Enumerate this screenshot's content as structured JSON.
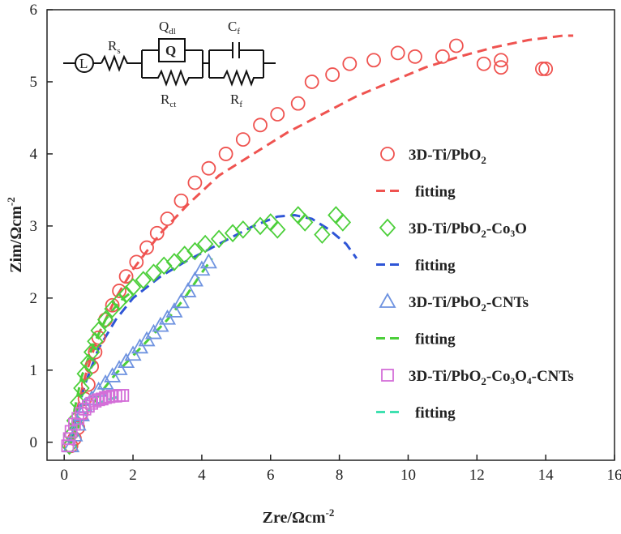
{
  "chart_data": {
    "type": "scatter",
    "xlabel": "Zre/Ωcm",
    "xlabel_sup": "-2",
    "ylabel": "Zim/Ωcm",
    "ylabel_sup": "-2",
    "xlim": [
      -0.5,
      16
    ],
    "ylim": [
      -0.25,
      6
    ],
    "xticks": [
      0,
      2,
      4,
      6,
      8,
      10,
      12,
      14,
      16
    ],
    "yticks": [
      0,
      1,
      2,
      3,
      4,
      5,
      6
    ],
    "grid": false,
    "legend_position": "right",
    "series": [
      {
        "id": "s1",
        "name_main": "3D-Ti/PbO",
        "name_sub": "2",
        "name_tail": "",
        "marker": "circle",
        "color": "#ef5350",
        "points": [
          [
            0.2,
            -0.05
          ],
          [
            0.3,
            0.05
          ],
          [
            0.4,
            0.2
          ],
          [
            0.5,
            0.4
          ],
          [
            0.6,
            0.6
          ],
          [
            0.7,
            0.8
          ],
          [
            0.8,
            1.05
          ],
          [
            0.9,
            1.25
          ],
          [
            1.0,
            1.45
          ],
          [
            1.2,
            1.7
          ],
          [
            1.4,
            1.9
          ],
          [
            1.6,
            2.1
          ],
          [
            1.8,
            2.3
          ],
          [
            2.1,
            2.5
          ],
          [
            2.4,
            2.7
          ],
          [
            2.7,
            2.9
          ],
          [
            3.0,
            3.1
          ],
          [
            3.4,
            3.35
          ],
          [
            3.8,
            3.6
          ],
          [
            4.2,
            3.8
          ],
          [
            4.7,
            4.0
          ],
          [
            5.2,
            4.2
          ],
          [
            5.7,
            4.4
          ],
          [
            6.2,
            4.55
          ],
          [
            6.8,
            4.7
          ],
          [
            7.2,
            5.0
          ],
          [
            7.8,
            5.1
          ],
          [
            8.3,
            5.25
          ],
          [
            9.0,
            5.3
          ],
          [
            9.7,
            5.4
          ],
          [
            10.2,
            5.35
          ],
          [
            11.0,
            5.35
          ],
          [
            11.4,
            5.5
          ],
          [
            12.2,
            5.25
          ],
          [
            12.7,
            5.2
          ],
          [
            12.7,
            5.3
          ],
          [
            13.9,
            5.18
          ],
          [
            14.0,
            5.18
          ]
        ]
      },
      {
        "id": "f1",
        "name_main": "fitting",
        "name_sub": "",
        "name_tail": "",
        "marker": "dash",
        "color": "#ef5350",
        "points": [
          [
            0.2,
            0.0
          ],
          [
            0.35,
            0.4
          ],
          [
            0.6,
            0.9
          ],
          [
            1.0,
            1.5
          ],
          [
            1.5,
            2.0
          ],
          [
            2.0,
            2.4
          ],
          [
            2.8,
            2.9
          ],
          [
            3.6,
            3.3
          ],
          [
            4.5,
            3.7
          ],
          [
            5.5,
            4.0
          ],
          [
            6.5,
            4.3
          ],
          [
            7.5,
            4.55
          ],
          [
            8.5,
            4.8
          ],
          [
            9.5,
            5.0
          ],
          [
            10.5,
            5.2
          ],
          [
            11.5,
            5.35
          ],
          [
            12.5,
            5.48
          ],
          [
            13.5,
            5.58
          ],
          [
            14.5,
            5.64
          ],
          [
            14.8,
            5.64
          ]
        ]
      },
      {
        "id": "s2",
        "name_main": "3D-Ti/PbO",
        "name_sub": "2",
        "name_tail": "-Co₃O",
        "marker": "diamond",
        "color": "#4ccf3a",
        "points": [
          [
            0.15,
            -0.05
          ],
          [
            0.2,
            0.1
          ],
          [
            0.3,
            0.3
          ],
          [
            0.4,
            0.55
          ],
          [
            0.5,
            0.75
          ],
          [
            0.6,
            0.95
          ],
          [
            0.7,
            1.1
          ],
          [
            0.8,
            1.25
          ],
          [
            0.9,
            1.4
          ],
          [
            1.0,
            1.55
          ],
          [
            1.2,
            1.7
          ],
          [
            1.4,
            1.85
          ],
          [
            1.6,
            1.95
          ],
          [
            1.8,
            2.05
          ],
          [
            2.0,
            2.15
          ],
          [
            2.3,
            2.25
          ],
          [
            2.6,
            2.35
          ],
          [
            2.9,
            2.45
          ],
          [
            3.2,
            2.5
          ],
          [
            3.5,
            2.6
          ],
          [
            3.8,
            2.65
          ],
          [
            4.1,
            2.75
          ],
          [
            4.5,
            2.82
          ],
          [
            4.9,
            2.9
          ],
          [
            5.2,
            2.95
          ],
          [
            5.7,
            3.0
          ],
          [
            6.0,
            3.05
          ],
          [
            6.2,
            2.95
          ],
          [
            6.8,
            3.15
          ],
          [
            7.0,
            3.05
          ],
          [
            7.5,
            2.88
          ],
          [
            7.9,
            3.15
          ],
          [
            8.1,
            3.05
          ]
        ]
      },
      {
        "id": "f2",
        "name_main": "fitting",
        "name_sub": "",
        "name_tail": "",
        "marker": "dash",
        "color": "#2e55d6",
        "points": [
          [
            0.2,
            0.0
          ],
          [
            0.35,
            0.35
          ],
          [
            0.6,
            0.8
          ],
          [
            1.0,
            1.3
          ],
          [
            1.5,
            1.7
          ],
          [
            2.0,
            2.0
          ],
          [
            2.8,
            2.3
          ],
          [
            3.5,
            2.5
          ],
          [
            4.5,
            2.75
          ],
          [
            5.5,
            3.0
          ],
          [
            6.2,
            3.13
          ],
          [
            6.7,
            3.15
          ],
          [
            7.2,
            3.1
          ],
          [
            7.7,
            2.95
          ],
          [
            8.2,
            2.75
          ],
          [
            8.5,
            2.55
          ]
        ]
      },
      {
        "id": "s3",
        "name_main": "3D-Ti/PbO",
        "name_sub": "2",
        "name_tail": "-CNTs",
        "marker": "triangle",
        "color": "#6f93e0",
        "points": [
          [
            0.2,
            -0.05
          ],
          [
            0.3,
            0.1
          ],
          [
            0.4,
            0.25
          ],
          [
            0.5,
            0.38
          ],
          [
            0.6,
            0.5
          ],
          [
            0.8,
            0.6
          ],
          [
            1.0,
            0.72
          ],
          [
            1.2,
            0.82
          ],
          [
            1.4,
            0.92
          ],
          [
            1.6,
            1.02
          ],
          [
            1.8,
            1.12
          ],
          [
            2.0,
            1.22
          ],
          [
            2.2,
            1.32
          ],
          [
            2.4,
            1.42
          ],
          [
            2.6,
            1.52
          ],
          [
            2.8,
            1.62
          ],
          [
            3.0,
            1.72
          ],
          [
            3.2,
            1.82
          ],
          [
            3.4,
            1.95
          ],
          [
            3.6,
            2.1
          ],
          [
            3.8,
            2.25
          ],
          [
            4.0,
            2.4
          ],
          [
            4.2,
            2.5
          ]
        ]
      },
      {
        "id": "f3",
        "name_main": "fitting",
        "name_sub": "",
        "name_tail": "",
        "marker": "dash",
        "color": "#4ccf3a",
        "points": [
          [
            0.2,
            0.0
          ],
          [
            0.5,
            0.3
          ],
          [
            1.0,
            0.65
          ],
          [
            1.5,
            0.95
          ],
          [
            2.0,
            1.2
          ],
          [
            2.5,
            1.45
          ],
          [
            3.0,
            1.7
          ],
          [
            3.5,
            2.0
          ],
          [
            4.0,
            2.35
          ],
          [
            4.3,
            2.55
          ]
        ]
      },
      {
        "id": "s4",
        "name_main": "3D-Ti/PbO",
        "name_sub": "2",
        "name_tail": "-Co₃O₄-CNTs",
        "marker": "square",
        "color": "#d46fd8",
        "points": [
          [
            0.1,
            -0.05
          ],
          [
            0.15,
            0.05
          ],
          [
            0.2,
            0.15
          ],
          [
            0.3,
            0.25
          ],
          [
            0.4,
            0.33
          ],
          [
            0.5,
            0.4
          ],
          [
            0.6,
            0.46
          ],
          [
            0.7,
            0.5
          ],
          [
            0.8,
            0.54
          ],
          [
            0.9,
            0.57
          ],
          [
            1.0,
            0.59
          ],
          [
            1.1,
            0.6
          ],
          [
            1.2,
            0.62
          ],
          [
            1.3,
            0.63
          ],
          [
            1.4,
            0.64
          ],
          [
            1.5,
            0.64
          ],
          [
            1.6,
            0.65
          ],
          [
            1.7,
            0.65
          ]
        ]
      },
      {
        "id": "f4",
        "name_main": "fitting",
        "name_sub": "",
        "name_tail": "",
        "marker": "dash",
        "color": "#3fe0b0",
        "points": [
          [
            0.1,
            0.0
          ],
          [
            0.3,
            0.2
          ],
          [
            0.6,
            0.4
          ],
          [
            0.9,
            0.52
          ],
          [
            1.2,
            0.58
          ],
          [
            1.5,
            0.62
          ],
          [
            1.7,
            0.64
          ]
        ]
      },
      {
        "id": "f5",
        "name_main": "",
        "name_sub": "",
        "name_tail": "",
        "marker": "dash",
        "color": "#4ccf3a",
        "points": [
          [
            0.15,
            0.0
          ],
          [
            0.3,
            0.45
          ],
          [
            0.5,
            0.9
          ],
          [
            0.8,
            1.3
          ],
          [
            1.2,
            1.7
          ],
          [
            1.6,
            1.95
          ],
          [
            2.0,
            2.1
          ]
        ]
      }
    ]
  },
  "circuit": {
    "label_rs": "R",
    "label_rs_sub": "s",
    "label_qdl": "Q",
    "label_qdl_sub": "dl",
    "label_q_box": "Q",
    "label_rct": "R",
    "label_rct_sub": "ct",
    "label_cf": "C",
    "label_cf_sub": "f",
    "label_rf": "R",
    "label_rf_sub": "f",
    "label_l": "L"
  }
}
